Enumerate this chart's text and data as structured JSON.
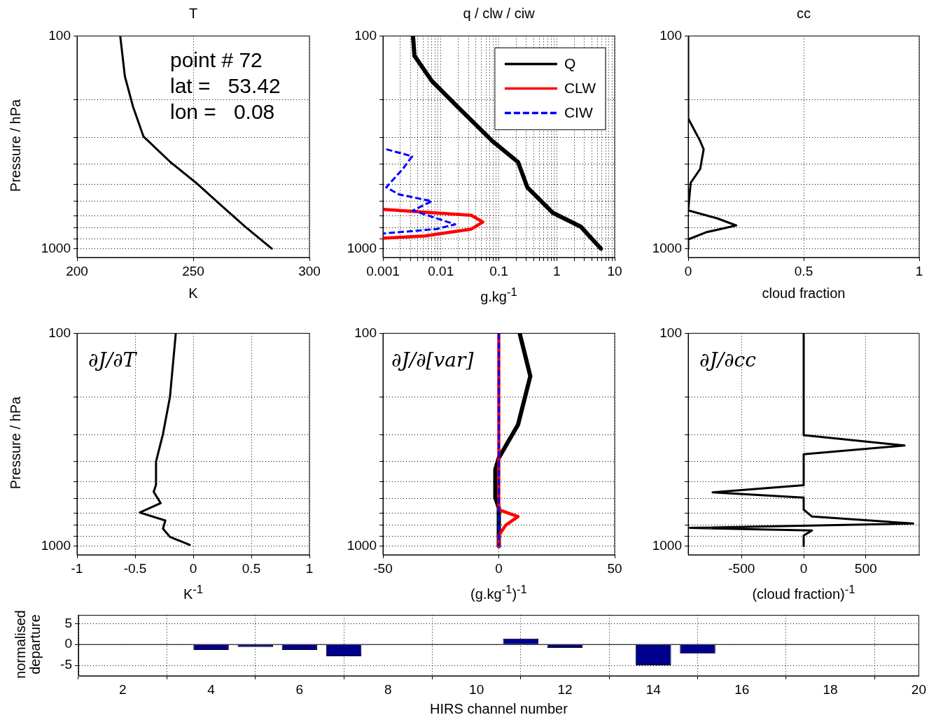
{
  "chart_data": [
    {
      "type": "line",
      "title": "T",
      "xlabel": "K",
      "ylabel": "Pressure / hPa",
      "annotations": [
        "point # 72",
        "lat =   53.42",
        "lon =   0.08"
      ],
      "log": "y",
      "grid": true,
      "xlim": [
        200,
        300
      ],
      "xticks": [
        200,
        250,
        300
      ],
      "ylim": [
        1100,
        100
      ],
      "yticks": [
        100,
        {
          "value": 200,
          "label": null
        },
        {
          "value": 300,
          "label": null
        },
        {
          "value": 400,
          "label": null
        },
        {
          "value": 500,
          "label": null
        },
        {
          "value": 600,
          "label": null
        },
        {
          "value": 700,
          "label": null
        },
        {
          "value": 800,
          "label": null
        },
        {
          "value": 900,
          "label": null
        },
        1000
      ],
      "series": [
        {
          "color": "#000000",
          "x": [
            218.6,
            220.6,
            224.1,
            228.6,
            240.2,
            251.2,
            261.2,
            272.3,
            283.8
          ],
          "values": [
            100,
            155,
            215,
            297,
            392,
            490,
            614,
            788,
            1000
          ]
        }
      ]
    },
    {
      "type": "line",
      "title": "q / clw / ciw",
      "xlabel": "g.kg$^{-1}$",
      "log": "xy",
      "grid": true,
      "legend": "top right",
      "xlim": [
        0.001,
        10
      ],
      "xticks": [
        0.001,
        {
          "value": 0.002,
          "label": null
        },
        {
          "value": 0.003,
          "label": null
        },
        {
          "value": 0.004,
          "label": null
        },
        {
          "value": 0.005,
          "label": null
        },
        {
          "value": 0.006,
          "label": null
        },
        {
          "value": 0.007,
          "label": null
        },
        {
          "value": 0.008,
          "label": null
        },
        {
          "value": 0.009,
          "label": null
        },
        0.01,
        {
          "value": 0.02,
          "label": null
        },
        {
          "value": 0.03,
          "label": null
        },
        {
          "value": 0.04,
          "label": null
        },
        {
          "value": 0.05,
          "label": null
        },
        {
          "value": 0.06,
          "label": null
        },
        {
          "value": 0.07,
          "label": null
        },
        {
          "value": 0.08,
          "label": null
        },
        {
          "value": 0.09,
          "label": null
        },
        0.1,
        {
          "value": 0.2,
          "label": null
        },
        {
          "value": 0.3,
          "label": null
        },
        {
          "value": 0.4,
          "label": null
        },
        {
          "value": 0.5,
          "label": null
        },
        {
          "value": 0.6,
          "label": null
        },
        {
          "value": 0.7,
          "label": null
        },
        {
          "value": 0.8,
          "label": null
        },
        {
          "value": 0.9,
          "label": null
        },
        1,
        {
          "value": 2,
          "label": null
        },
        {
          "value": 3,
          "label": null
        },
        {
          "value": 4,
          "label": null
        },
        {
          "value": 5,
          "label": null
        },
        {
          "value": 6,
          "label": null
        },
        {
          "value": 7,
          "label": null
        },
        {
          "value": 8,
          "label": null
        },
        {
          "value": 9,
          "label": null
        },
        10
      ],
      "ylim": [
        1100,
        100
      ],
      "yticks": [
        100,
        {
          "value": 200,
          "label": null
        },
        {
          "value": 300,
          "label": null
        },
        {
          "value": 400,
          "label": null
        },
        {
          "value": 500,
          "label": null
        },
        {
          "value": 600,
          "label": null
        },
        {
          "value": 700,
          "label": null
        },
        {
          "value": 800,
          "label": null
        },
        {
          "value": 900,
          "label": null
        },
        1000
      ],
      "series": [
        {
          "name": "Q",
          "color": "#000000",
          "line_style": "solid",
          "x": [
            0.0033,
            0.0035,
            0.007,
            0.0193,
            0.0775,
            0.215,
            0.311,
            0.86,
            2.6,
            5.8
          ],
          "values": [
            100,
            124,
            163,
            215,
            312,
            392,
            515,
            679,
            788,
            1000
          ]
        },
        {
          "name": "CLW",
          "color": "#ff0000",
          "line_style": "solid",
          "x": [
            0.001,
            0.0336,
            0.053,
            0.0336,
            0.0053,
            0.001
          ],
          "values": [
            653,
            697,
            750,
            809,
            872,
            893
          ]
        },
        {
          "name": "CIW",
          "color": "#0000ff",
          "line_style": "dashed",
          "x": [
            0.00114,
            0.0032,
            0.0022,
            0.00114,
            0.0019,
            0.007,
            0.0033,
            0.0176,
            0.0083,
            0.001
          ],
          "values": [
            341,
            368,
            422,
            515,
            556,
            598,
            661,
            769,
            809,
            849
          ]
        }
      ]
    },
    {
      "type": "line",
      "title": "cc",
      "xlabel": "cloud fraction",
      "log": "y",
      "grid": true,
      "xlim": [
        0,
        1
      ],
      "xticks": [
        0,
        0.5,
        1
      ],
      "ylim": [
        1100,
        100
      ],
      "yticks": [
        100,
        {
          "value": 200,
          "label": null
        },
        {
          "value": 300,
          "label": null
        },
        {
          "value": 400,
          "label": null
        },
        {
          "value": 500,
          "label": null
        },
        {
          "value": 600,
          "label": null
        },
        {
          "value": 700,
          "label": null
        },
        {
          "value": 800,
          "label": null
        },
        {
          "value": 900,
          "label": null
        },
        1000
      ],
      "series": [
        {
          "color": "#000000",
          "x": [
            0,
            0,
            0.052,
            0.067,
            0.052,
            0.011,
            0,
            0.127,
            0.208,
            0.077,
            0,
            0
          ],
          "values": [
            100,
            244,
            312,
            341,
            422,
            490,
            661,
            721,
            778,
            838,
            905,
            1000
          ]
        }
      ]
    },
    {
      "type": "line",
      "xlabel": "K$^{-1}$",
      "ylabel": "Pressure / hPa",
      "annotations": [
        "∂J/∂T"
      ],
      "log": "y",
      "grid": true,
      "xlim": [
        -1,
        1
      ],
      "xticks": [
        -1,
        -0.5,
        0,
        0.5,
        1
      ],
      "ylim": [
        1100,
        100
      ],
      "yticks": [
        100,
        {
          "value": 200,
          "label": null
        },
        {
          "value": 300,
          "label": null
        },
        {
          "value": 400,
          "label": null
        },
        {
          "value": 500,
          "label": null
        },
        {
          "value": 600,
          "label": null
        },
        {
          "value": 700,
          "label": null
        },
        {
          "value": 800,
          "label": null
        },
        {
          "value": 900,
          "label": null
        },
        1000
      ],
      "series": [
        {
          "color": "#000000",
          "x": [
            -0.15,
            -0.2,
            -0.26,
            -0.32,
            -0.32,
            -0.34,
            -0.28,
            -0.46,
            -0.24,
            -0.26,
            -0.2,
            -0.03
          ],
          "values": [
            100,
            199,
            297,
            401,
            515,
            556,
            629,
            696,
            759,
            829,
            906,
            989
          ]
        }
      ]
    },
    {
      "type": "line",
      "xlabel": "(g.kg$^{-1}$)$^{-1}$",
      "annotations": [
        "∂J/∂[var]"
      ],
      "log": "y",
      "grid": true,
      "xlim": [
        -50,
        50
      ],
      "xticks": [
        -50,
        0,
        50
      ],
      "ylim": [
        1100,
        100
      ],
      "yticks": [
        100,
        {
          "value": 200,
          "label": null
        },
        {
          "value": 300,
          "label": null
        },
        {
          "value": 400,
          "label": null
        },
        {
          "value": 500,
          "label": null
        },
        {
          "value": 600,
          "label": null
        },
        {
          "value": 700,
          "label": null
        },
        {
          "value": 800,
          "label": null
        },
        {
          "value": 900,
          "label": null
        },
        1000
      ],
      "series": [
        {
          "color": "#000000",
          "line_style": "solid",
          "x": [
            9,
            13.6,
            8.3,
            0,
            -1.5,
            -1.5,
            0,
            0
          ],
          "values": [
            100,
            159,
            269,
            385,
            438,
            591,
            662,
            1000
          ]
        },
        {
          "color": "#ff0000",
          "line_style": "solid",
          "x": [
            0,
            0,
            8.3,
            3,
            0,
            0
          ],
          "values": [
            100,
            675,
            727,
            798,
            893,
            1000
          ]
        },
        {
          "color": "#0000ff",
          "line_style": "dashed",
          "x": [
            0,
            0
          ],
          "values": [
            100,
            1000
          ]
        }
      ]
    },
    {
      "type": "line",
      "xlabel": "(cloud fraction)$^{-1}$",
      "annotations": [
        "∂J/∂cc"
      ],
      "log": "y",
      "grid": true,
      "xlim": [
        -930,
        930
      ],
      "xticks": [
        -500,
        0,
        500
      ],
      "ylim": [
        1100,
        100
      ],
      "yticks": [
        100,
        {
          "value": 200,
          "label": null
        },
        {
          "value": 300,
          "label": null
        },
        {
          "value": 400,
          "label": null
        },
        {
          "value": 500,
          "label": null
        },
        {
          "value": 600,
          "label": null
        },
        {
          "value": 700,
          "label": null
        },
        {
          "value": 800,
          "label": null
        },
        {
          "value": 900,
          "label": null
        },
        1000
      ],
      "series": [
        {
          "color": "#000000",
          "x": [
            0,
            0,
            812,
            0,
            0,
            -733,
            0,
            0,
            67,
            882,
            -916,
            67,
            0,
            0
          ],
          "values": [
            100,
            301,
            337,
            370,
            518,
            560,
            592,
            675,
            727,
            784,
            822,
            845,
            893,
            1000
          ]
        }
      ]
    },
    {
      "type": "bar",
      "xlabel": "HIRS channel number",
      "ylabel": "normalised departure",
      "grid": true,
      "xlim": [
        1,
        20
      ],
      "xticks": [
        2,
        4,
        6,
        8,
        10,
        12,
        14,
        16,
        18,
        20
      ],
      "ylim": [
        -7.5,
        7
      ],
      "yticks": [
        -5,
        0,
        5
      ],
      "ref_lines": [
        {
          "axis": "y",
          "value": 0
        }
      ],
      "color": "#00008f",
      "x": [
        4,
        5,
        6,
        7,
        11,
        12,
        14,
        15
      ],
      "values": [
        -1.3,
        -0.6,
        -1.3,
        -2.8,
        1.4,
        -0.8,
        -5,
        -2.2
      ]
    }
  ]
}
